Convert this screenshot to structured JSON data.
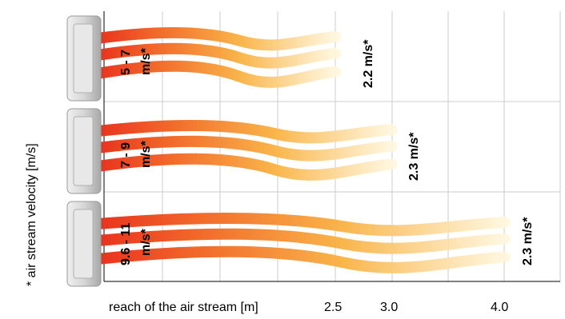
{
  "diagram": {
    "y_axis_label": "* air stream velocity [m/s]",
    "x_axis_label": "reach of the air stream [m]",
    "x_ticks": [
      "2.5",
      "3.0",
      "4.0"
    ],
    "units": [
      {
        "outlet_velocity_line1": "5 - 7",
        "outlet_velocity_line2": "m/s*",
        "reach_velocity": "2.2 m/s*",
        "reach_m": 2.5
      },
      {
        "outlet_velocity_line1": "7 - 9",
        "outlet_velocity_line2": "m/s*",
        "reach_velocity": "2.3 m/s*",
        "reach_m": 3.0
      },
      {
        "outlet_velocity_line1": "9.6 - 11",
        "outlet_velocity_line2": "m/s*",
        "reach_velocity": "2.3 m/s*",
        "reach_m": 4.0
      }
    ],
    "colors": {
      "stream_start": "#e8321e",
      "stream_mid": "#f7a23a",
      "stream_end": "#fff6dc",
      "grid": "#cccccc",
      "axis": "#000000",
      "unit_body": "#d9d9d9"
    }
  }
}
